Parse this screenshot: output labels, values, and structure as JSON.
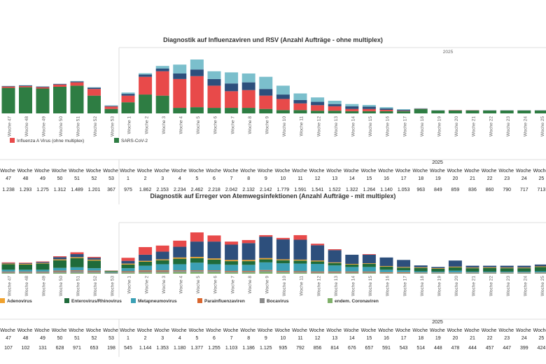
{
  "chart_data": [
    {
      "type": "bar",
      "stacked": true,
      "title": "Diagnostik auf Influenzaviren und RSV (Anzahl Aufträge - ohne multiplex)",
      "year_label": "2025",
      "categories": [
        "Woche 47",
        "Woche 48",
        "Woche 49",
        "Woche 50",
        "Woche 51",
        "Woche 52",
        "Woche 53",
        "Woche 1",
        "Woche 2",
        "Woche 3",
        "Woche 4",
        "Woche 5",
        "Woche 6",
        "Woche 7",
        "Woche 8",
        "Woche 9",
        "Woche 10",
        "Woche 11",
        "Woche 12",
        "Woche 13",
        "Woche 14",
        "Woche 15",
        "Woche 16",
        "Woche 17",
        "Woche 18",
        "Woche 19",
        "Woche 20",
        "Woche 21",
        "Woche 22",
        "Woche 23",
        "Woche 24",
        "Woche 25"
      ],
      "series": [
        {
          "color": "#7bbfcc",
          "values": [
            10,
            10,
            10,
            0,
            20,
            20,
            20,
            60,
            60,
            120,
            400,
            450,
            350,
            500,
            400,
            550,
            400,
            300,
            200,
            150,
            100,
            80,
            60,
            30,
            10,
            5,
            5,
            5,
            5,
            5,
            5,
            5
          ]
        },
        {
          "color": "#2d4f7c",
          "values": [
            20,
            30,
            30,
            30,
            40,
            60,
            30,
            80,
            100,
            120,
            250,
            300,
            300,
            350,
            350,
            300,
            200,
            150,
            150,
            100,
            120,
            100,
            60,
            40,
            10,
            5,
            5,
            5,
            5,
            5,
            5,
            5
          ]
        },
        {
          "name": "Influenza A Virus (ohne multiplex)",
          "color": "#e84a4a",
          "values": [
            60,
            50,
            60,
            100,
            150,
            300,
            110,
            300,
            800,
            1100,
            1300,
            1400,
            1000,
            750,
            800,
            600,
            500,
            300,
            250,
            200,
            100,
            100,
            60,
            20,
            10,
            5,
            15,
            10,
            5,
            5,
            5,
            5
          ]
        },
        {
          "name": "SARS-CoV-2",
          "color": "#2e7d43",
          "values": [
            1150,
            1180,
            1120,
            1200,
            1250,
            800,
            200,
            500,
            850,
            800,
            250,
            280,
            250,
            250,
            250,
            200,
            150,
            150,
            120,
            120,
            100,
            100,
            100,
            100,
            200,
            130,
            130,
            130,
            130,
            130,
            130,
            130
          ]
        }
      ],
      "table": {
        "year_label": "2025",
        "values": [
          "1.238",
          "1.293",
          "1.275",
          "1.312",
          "1.489",
          "1.201",
          "367",
          "975",
          "1.862",
          "2.153",
          "2.234",
          "2.462",
          "2.218",
          "2.042",
          "2.132",
          "2.142",
          "1.779",
          "1.591",
          "1.541",
          "1.522",
          "1.322",
          "1.264",
          "1.140",
          "1.053",
          "963",
          "849",
          "859",
          "836",
          "860",
          "790",
          "717",
          "713"
        ]
      }
    },
    {
      "type": "bar",
      "stacked": true,
      "title": "Diagnostik auf Erreger von Atemwegsinfektionen (Anzahl Aufträge - mit multiplex)",
      "categories": [
        "Woche 47",
        "Woche 48",
        "Woche 49",
        "Woche 50",
        "Woche 51",
        "Woche 52",
        "Woche 53",
        "Woche 1",
        "Woche 2",
        "Woche 3",
        "Woche 4",
        "Woche 5",
        "Woche 6",
        "Woche 7",
        "Woche 8",
        "Woche 9",
        "Woche 10",
        "Woche 11",
        "Woche 12",
        "Woche 13",
        "Woche 14",
        "Woche 15",
        "Woche 16",
        "Woche 17",
        "Woche 18",
        "Woche 19",
        "Woche 20",
        "Woche 21",
        "Woche 22",
        "Woche 23",
        "Woche 24",
        "Woche 25"
      ],
      "series": [
        {
          "color": "#e84a4a",
          "values": [
            20,
            20,
            20,
            30,
            60,
            30,
            5,
            100,
            250,
            200,
            200,
            300,
            200,
            100,
            100,
            50,
            50,
            150,
            50,
            30,
            0,
            20,
            0,
            0,
            0,
            0,
            0,
            0,
            0,
            0,
            0,
            0
          ]
        },
        {
          "color": "#2d4f7c",
          "values": [
            20,
            20,
            30,
            70,
            100,
            60,
            5,
            90,
            200,
            250,
            350,
            500,
            550,
            500,
            550,
            700,
            650,
            650,
            500,
            400,
            300,
            280,
            280,
            230,
            60,
            40,
            200,
            60,
            50,
            60,
            60,
            60
          ]
        },
        {
          "name": "Adenovirus",
          "color": "#f0a22e",
          "values": [
            20,
            20,
            20,
            30,
            30,
            30,
            10,
            30,
            30,
            30,
            40,
            40,
            40,
            40,
            40,
            40,
            30,
            30,
            30,
            20,
            20,
            20,
            20,
            20,
            20,
            20,
            20,
            20,
            20,
            20,
            20,
            20
          ]
        },
        {
          "name": "Enterovirus/Rhinovirus",
          "color": "#1f6b3a",
          "values": [
            180,
            170,
            200,
            250,
            300,
            250,
            30,
            120,
            130,
            130,
            180,
            150,
            150,
            120,
            120,
            100,
            100,
            100,
            80,
            80,
            80,
            100,
            100,
            90,
            110,
            90,
            110,
            110,
            120,
            110,
            110,
            140
          ]
        },
        {
          "name": "Metapneumovirus",
          "color": "#3ba0b5",
          "values": [
            60,
            60,
            60,
            90,
            100,
            80,
            20,
            100,
            150,
            200,
            200,
            250,
            200,
            200,
            200,
            250,
            250,
            250,
            250,
            200,
            150,
            150,
            80,
            60,
            40,
            30,
            60,
            30,
            30,
            30,
            30,
            40
          ]
        },
        {
          "name": "Parainfluenzaviren",
          "color": "#d9662e",
          "values": [
            10,
            10,
            10,
            20,
            20,
            20,
            5,
            20,
            30,
            30,
            20,
            20,
            20,
            20,
            20,
            20,
            20,
            20,
            20,
            20,
            20,
            20,
            20,
            20,
            10,
            10,
            10,
            10,
            10,
            10,
            10,
            10
          ]
        },
        {
          "name": "Bocavirus",
          "color": "#8c8c8c",
          "values": [
            40,
            40,
            40,
            50,
            60,
            50,
            20,
            30,
            40,
            40,
            40,
            40,
            40,
            30,
            30,
            40,
            30,
            30,
            30,
            30,
            30,
            30,
            20,
            20,
            20,
            20,
            20,
            20,
            20,
            20,
            20,
            20
          ]
        },
        {
          "name": "endem. Coronaviren",
          "color": "#7fb069",
          "values": [
            20,
            20,
            20,
            30,
            30,
            30,
            10,
            30,
            40,
            40,
            50,
            50,
            50,
            40,
            40,
            60,
            40,
            30,
            20,
            20,
            20,
            20,
            10,
            10,
            10,
            10,
            10,
            10,
            10,
            10,
            10,
            10
          ]
        }
      ],
      "table": {
        "year_label": "2025",
        "values": [
          "107",
          "102",
          "131",
          "628",
          "971",
          "653",
          "198",
          "545",
          "1.144",
          "1.353",
          "1.180",
          "1.377",
          "1.255",
          "1.103",
          "1.186",
          "1.125",
          "935",
          "792",
          "856",
          "814",
          "676",
          "657",
          "591",
          "543",
          "514",
          "448",
          "478",
          "444",
          "457",
          "447",
          "399",
          "424"
        ]
      }
    }
  ]
}
